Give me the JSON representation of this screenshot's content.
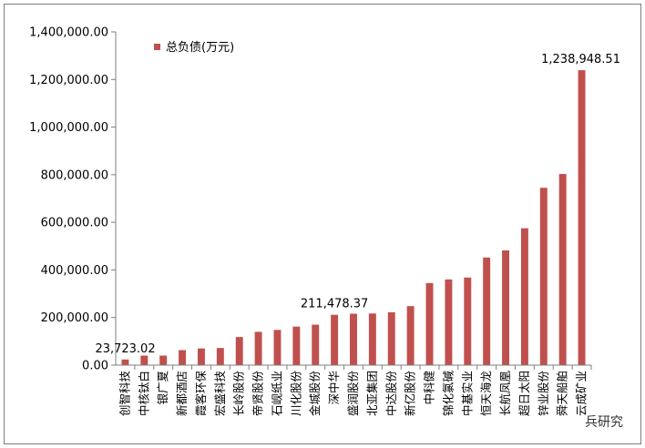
{
  "chart_data": {
    "type": "bar",
    "categories": [
      "创智科技",
      "中核钛白",
      "银广夏",
      "新都酒店",
      "霞客环保",
      "宏盛科技",
      "长岭股份",
      "帝贤股份",
      "石岘纸业",
      "川化股份",
      "金城股份",
      "深中华",
      "盛润股份",
      "北亚集团",
      "中达股份",
      "新亿股份",
      "中科健",
      "锦化氯碱",
      "中基实业",
      "恒天海龙",
      "长航凤凰",
      "超日太阳",
      "锌业股份",
      "舜天船舶",
      "云成矿业"
    ],
    "series": [
      {
        "name": "总负债(万元)",
        "values": [
          23723.02,
          40000,
          40000,
          63000,
          70000,
          72000,
          118000,
          140000,
          148000,
          162000,
          170000,
          211478.37,
          216000,
          217000,
          222000,
          248000,
          345000,
          360000,
          368000,
          452000,
          482000,
          575000,
          745000,
          803000,
          1238948.51
        ]
      }
    ],
    "data_labels": [
      {
        "index": 0,
        "text": "23,723.02"
      },
      {
        "index": 11,
        "text": "211,478.37"
      },
      {
        "index": 24,
        "text": "1,238,948.51"
      }
    ],
    "y_ticks": [
      "0.00",
      "200,000.00",
      "400,000.00",
      "600,000.00",
      "800,000.00",
      "1,000,000.00",
      "1,200,000.00",
      "1,400,000.00"
    ],
    "ylim": [
      0,
      1400000
    ],
    "legend_position": "top-left",
    "grid": false,
    "bar_color": "#C0504D",
    "title": "",
    "xlabel": "",
    "ylabel": ""
  },
  "watermark": "兵研究"
}
